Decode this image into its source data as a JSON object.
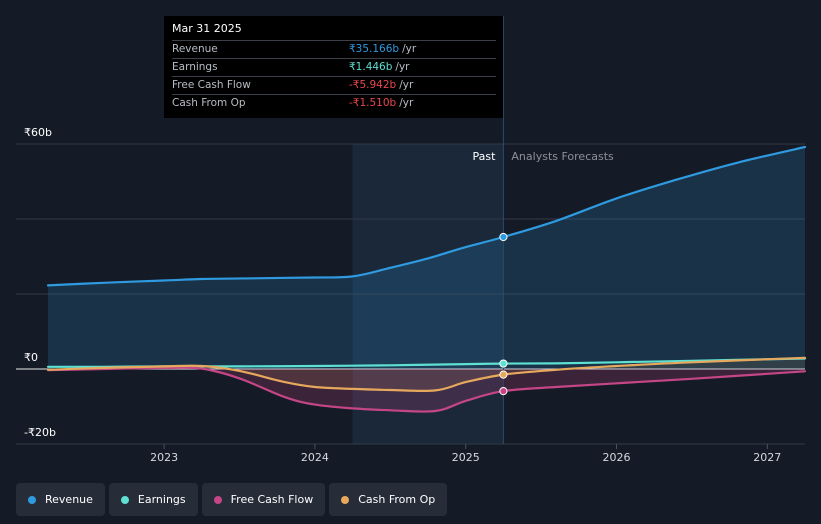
{
  "tooltip": {
    "date": "Mar 31 2025",
    "rows": [
      {
        "label": "Revenue",
        "value": "₹35.166b",
        "unit": "/yr",
        "color": "#2f9ae0"
      },
      {
        "label": "Earnings",
        "value": "₹1.446b",
        "unit": "/yr",
        "color": "#5ee0d2"
      },
      {
        "label": "Free Cash Flow",
        "value": "-₹5.942b",
        "unit": "/yr",
        "color": "#e8474f"
      },
      {
        "label": "Cash From Op",
        "value": "-₹1.510b",
        "unit": "/yr",
        "color": "#e8474f"
      }
    ]
  },
  "regions": {
    "past": "Past",
    "forecast": "Analysts Forecasts"
  },
  "legend": [
    {
      "label": "Revenue",
      "color": "#2f9ae0"
    },
    {
      "label": "Earnings",
      "color": "#5ee0d2"
    },
    {
      "label": "Free Cash Flow",
      "color": "#c54686"
    },
    {
      "label": "Cash From Op",
      "color": "#e6a85c"
    }
  ],
  "chart_data": {
    "type": "line",
    "title": "",
    "xlabel": "",
    "ylabel": "",
    "x_ticks": [
      2023,
      2024,
      2025,
      2026,
      2027
    ],
    "xlim": [
      2022.23,
      2027.25
    ],
    "ylim": [
      -20,
      60
    ],
    "y_labels": [
      {
        "value": 60,
        "label": "₹60b"
      },
      {
        "value": 0,
        "label": "₹0"
      },
      {
        "value": -20,
        "label": "-₹20b"
      }
    ],
    "gridlines": [
      60,
      40,
      20,
      0
    ],
    "past_start": 2024.25,
    "divider": 2025.25,
    "series": [
      {
        "name": "Revenue",
        "color": "#2f9ae0",
        "fill": true,
        "marker_at": 2025.25,
        "points": [
          [
            2022.23,
            22.3
          ],
          [
            2022.6,
            23.0
          ],
          [
            2023.0,
            23.6
          ],
          [
            2023.25,
            24.0
          ],
          [
            2023.6,
            24.2
          ],
          [
            2024.0,
            24.4
          ],
          [
            2024.25,
            24.7
          ],
          [
            2024.5,
            27.0
          ],
          [
            2024.75,
            29.5
          ],
          [
            2025.0,
            32.5
          ],
          [
            2025.25,
            35.2
          ],
          [
            2025.6,
            39.5
          ],
          [
            2026.0,
            45.5
          ],
          [
            2026.4,
            50.5
          ],
          [
            2026.8,
            55.0
          ],
          [
            2027.25,
            59.2
          ]
        ]
      },
      {
        "name": "Earnings",
        "color": "#5ee0d2",
        "fill": false,
        "marker_at": 2025.25,
        "points": [
          [
            2022.23,
            0.6
          ],
          [
            2022.6,
            0.6
          ],
          [
            2023.0,
            0.7
          ],
          [
            2023.5,
            0.7
          ],
          [
            2024.0,
            0.8
          ],
          [
            2024.5,
            1.0
          ],
          [
            2025.0,
            1.3
          ],
          [
            2025.25,
            1.45
          ],
          [
            2025.6,
            1.5
          ],
          [
            2026.0,
            1.8
          ],
          [
            2026.5,
            2.2
          ],
          [
            2027.25,
            2.8
          ]
        ]
      },
      {
        "name": "Free Cash Flow",
        "color": "#c54686",
        "fill": true,
        "marker_at": 2025.25,
        "points": [
          [
            2022.23,
            -0.3
          ],
          [
            2022.6,
            0.0
          ],
          [
            2023.0,
            0.3
          ],
          [
            2023.25,
            0.1
          ],
          [
            2023.5,
            -2.5
          ],
          [
            2023.8,
            -7.5
          ],
          [
            2024.0,
            -9.5
          ],
          [
            2024.25,
            -10.5
          ],
          [
            2024.5,
            -11.0
          ],
          [
            2024.8,
            -11.2
          ],
          [
            2025.0,
            -8.5
          ],
          [
            2025.25,
            -5.9
          ],
          [
            2025.6,
            -4.8
          ],
          [
            2026.0,
            -3.8
          ],
          [
            2026.5,
            -2.6
          ],
          [
            2027.25,
            -0.6
          ]
        ]
      },
      {
        "name": "Cash From Op",
        "color": "#e6a85c",
        "fill": true,
        "marker_at": 2025.25,
        "points": [
          [
            2022.23,
            -0.2
          ],
          [
            2022.6,
            0.3
          ],
          [
            2023.0,
            0.7
          ],
          [
            2023.25,
            0.8
          ],
          [
            2023.5,
            -0.5
          ],
          [
            2023.8,
            -3.5
          ],
          [
            2024.0,
            -4.8
          ],
          [
            2024.25,
            -5.3
          ],
          [
            2024.5,
            -5.6
          ],
          [
            2024.8,
            -5.7
          ],
          [
            2025.0,
            -3.5
          ],
          [
            2025.25,
            -1.5
          ],
          [
            2025.6,
            -0.2
          ],
          [
            2026.0,
            0.8
          ],
          [
            2026.5,
            1.8
          ],
          [
            2027.25,
            3.0
          ]
        ]
      }
    ]
  }
}
